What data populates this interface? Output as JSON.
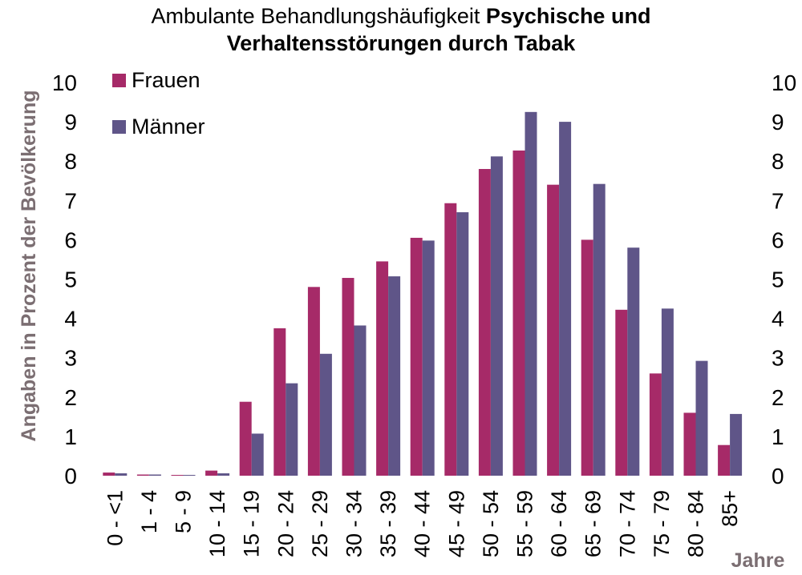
{
  "chart_data": {
    "type": "bar",
    "title_regular": "Ambulante Behandlungshäufigkeit ",
    "title_bold_1": "Psychische und",
    "title_bold_2": "Verhaltensstörungen durch Tabak",
    "ylabel": "Angaben in Prozent der Bevölkerung",
    "xlabel": "Jahre",
    "ylim": [
      0,
      10
    ],
    "yticks": [
      "0",
      "1",
      "2",
      "3",
      "4",
      "5",
      "6",
      "7",
      "8",
      "9",
      "10"
    ],
    "grid": false,
    "legend_position": "top-left",
    "categories": [
      "0 - <1",
      "1 - 4",
      "5 - 9",
      "10 - 14",
      "15 - 19",
      "20 - 24",
      "25 - 29",
      "30 - 34",
      "35 - 39",
      "40 - 44",
      "45 - 49",
      "50 - 54",
      "55 - 59",
      "60 - 64",
      "65 - 69",
      "70 - 74",
      "75 - 79",
      "80 - 84",
      "85+"
    ],
    "series": [
      {
        "name": "Frauen",
        "color": "#a62a68",
        "values": [
          0.08,
          0.03,
          0.02,
          0.13,
          1.88,
          3.75,
          4.8,
          5.03,
          5.45,
          6.05,
          6.93,
          7.8,
          8.27,
          7.4,
          6.0,
          4.22,
          2.6,
          1.6,
          0.78
        ]
      },
      {
        "name": "Männer",
        "color": "#5f5588",
        "values": [
          0.06,
          0.03,
          0.02,
          0.06,
          1.07,
          2.35,
          3.1,
          3.82,
          5.07,
          5.98,
          6.7,
          8.12,
          9.25,
          9.0,
          7.42,
          5.8,
          4.25,
          2.92,
          1.57
        ]
      }
    ],
    "colors": {
      "axis_label": "#7b6e72",
      "text": "#000000"
    }
  }
}
